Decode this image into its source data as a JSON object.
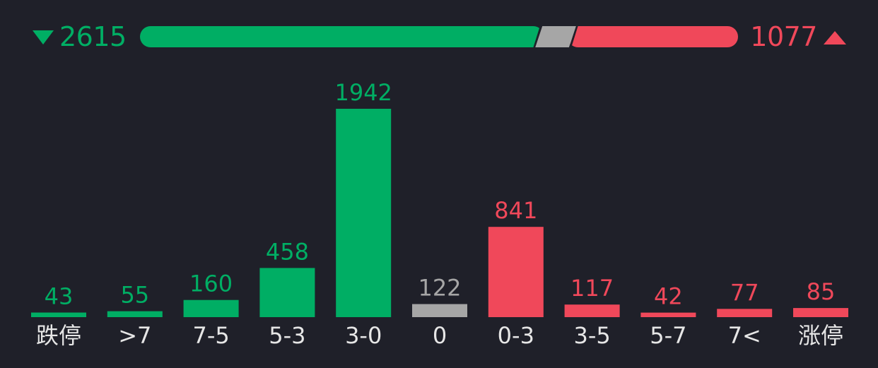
{
  "summary": {
    "down_total": "2615",
    "up_total": "1077",
    "down_color": "#00ae64",
    "flat_color": "#a6a6a6",
    "up_color": "#f0485a",
    "down_icon": "triangle-down-icon",
    "up_icon": "triangle-up-icon"
  },
  "chart_data": {
    "type": "bar",
    "title": "",
    "xlabel": "",
    "ylabel": "",
    "categories": [
      "跌停",
      ">7",
      "7-5",
      "5-3",
      "3-0",
      "0",
      "0-3",
      "3-5",
      "5-7",
      "7<",
      "涨停"
    ],
    "values": [
      43,
      55,
      160,
      458,
      1942,
      122,
      841,
      117,
      42,
      77,
      85
    ],
    "colors": [
      "#00ae64",
      "#00ae64",
      "#00ae64",
      "#00ae64",
      "#00ae64",
      "#a6a6a6",
      "#f0485a",
      "#f0485a",
      "#f0485a",
      "#f0485a",
      "#f0485a"
    ],
    "ylim": [
      0,
      1942
    ],
    "grid": false,
    "legend": "none"
  }
}
